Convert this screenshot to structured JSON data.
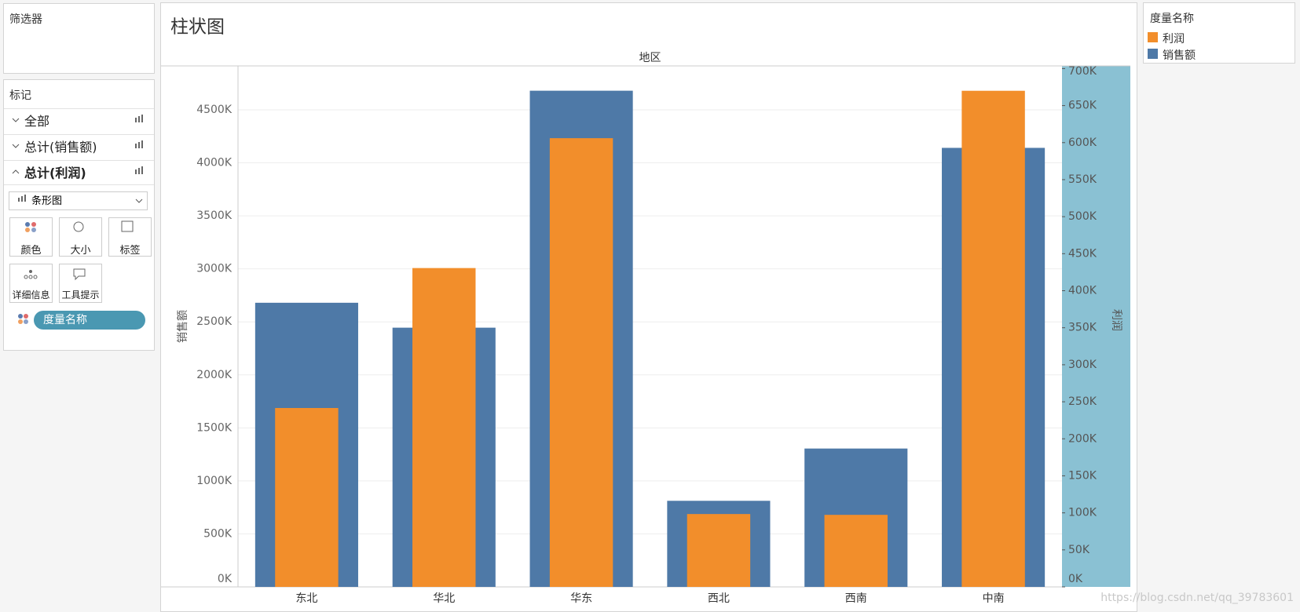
{
  "sidebar": {
    "filters_title": "筛选器",
    "marks_title": "标记",
    "mark_rows": [
      "全部",
      "总计(销售额)",
      "总计(利润)"
    ],
    "mark_type": "条形图",
    "mark_buttons": [
      "颜色",
      "大小",
      "标签",
      "详细信息",
      "工具提示"
    ],
    "pill": "度量名称"
  },
  "chart_data": {
    "type": "bar",
    "title": "柱状图",
    "x_label": "地区",
    "y_label": "销售额",
    "y2_label": "利润",
    "legend_title": "度量名称",
    "categories": [
      "东北",
      "华北",
      "华东",
      "西北",
      "西南",
      "中南"
    ],
    "series": [
      {
        "name": "销售额",
        "color": "#4e79a7",
        "values": [
          2680000,
          2445000,
          4680000,
          812000,
          1305000,
          4141000
        ]
      },
      {
        "name": "利润",
        "color": "#f28e2b",
        "axis": "y2",
        "values": [
          241600,
          430600,
          606000,
          98400,
          97300,
          670000
        ]
      }
    ],
    "ylim": [
      0,
      4914000
    ],
    "yticks": [
      {
        "value": 0,
        "label": "0K"
      },
      {
        "value": 500000,
        "label": "500K"
      },
      {
        "value": 1000000,
        "label": "1000K"
      },
      {
        "value": 1500000,
        "label": "1500K"
      },
      {
        "value": 2000000,
        "label": "2000K"
      },
      {
        "value": 2500000,
        "label": "2500K"
      },
      {
        "value": 3000000,
        "label": "3000K"
      },
      {
        "value": 3500000,
        "label": "3500K"
      },
      {
        "value": 4000000,
        "label": "4000K"
      },
      {
        "value": 4500000,
        "label": "4500K"
      }
    ],
    "y2lim": [
      0,
      703600
    ],
    "y2ticks": [
      {
        "value": 0,
        "label": "0K"
      },
      {
        "value": 50000,
        "label": "50K"
      },
      {
        "value": 100000,
        "label": "100K"
      },
      {
        "value": 150000,
        "label": "150K"
      },
      {
        "value": 200000,
        "label": "200K"
      },
      {
        "value": 250000,
        "label": "250K"
      },
      {
        "value": 300000,
        "label": "300K"
      },
      {
        "value": 350000,
        "label": "350K"
      },
      {
        "value": 400000,
        "label": "400K"
      },
      {
        "value": 450000,
        "label": "450K"
      },
      {
        "value": 500000,
        "label": "500K"
      },
      {
        "value": 550000,
        "label": "550K"
      },
      {
        "value": 600000,
        "label": "600K"
      },
      {
        "value": 650000,
        "label": "650K"
      },
      {
        "value": 700000,
        "label": "700K"
      }
    ],
    "grid": true,
    "y2_axis_background": "#8ac1d3",
    "legend_position": "right"
  },
  "watermark": "https://blog.csdn.net/qq_39783601"
}
